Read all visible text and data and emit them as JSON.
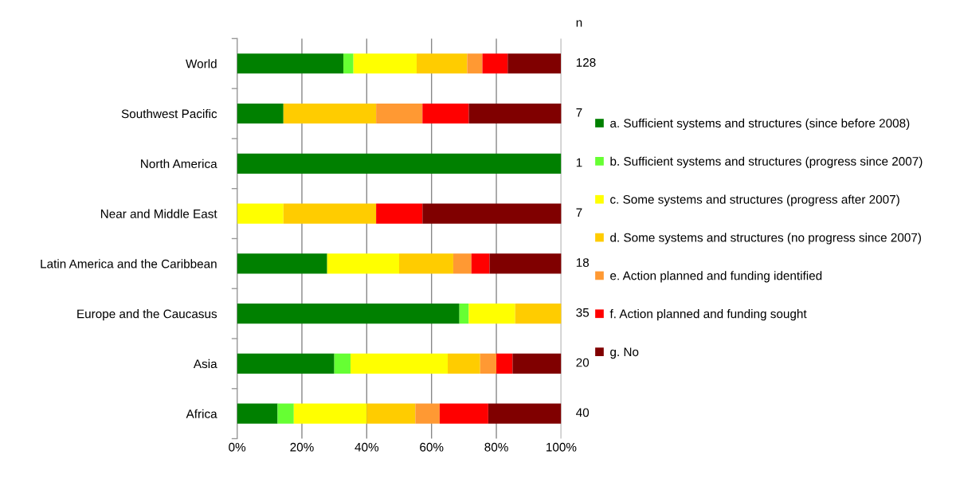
{
  "chart_data": {
    "type": "bar",
    "orientation": "horizontal",
    "stacked": true,
    "categories": [
      "World",
      "Southwest Pacific",
      "North America",
      "Near and Middle East",
      "Latin America and the Caribbean",
      "Europe and the Caucasus",
      "Asia",
      "Africa"
    ],
    "series": [
      {
        "name": "a. Sufficient systems and structures (since before 2008)",
        "color": "#008000",
        "values": [
          32.8,
          14.3,
          100,
          0,
          27.8,
          68.6,
          30,
          12.5
        ]
      },
      {
        "name": "b. Sufficient systems and structures (progress since 2007)",
        "color": "#66ff33",
        "values": [
          3.1,
          0,
          0,
          0,
          0,
          2.9,
          5,
          5
        ]
      },
      {
        "name": "c. Some systems and structures (progress after 2007)",
        "color": "#ffff00",
        "values": [
          19.5,
          0,
          0,
          14.3,
          22.2,
          14.3,
          30,
          22.5
        ]
      },
      {
        "name": "d. Some systems and structures (no progress since 2007)",
        "color": "#ffcc00",
        "values": [
          15.6,
          28.6,
          0,
          28.6,
          16.7,
          14.3,
          10,
          15
        ]
      },
      {
        "name": "e. Action planned and funding identified",
        "color": "#ff9933",
        "values": [
          4.7,
          14.3,
          0,
          0,
          5.6,
          0,
          5,
          7.5
        ]
      },
      {
        "name": "f. Action planned and funding sought",
        "color": "#ff0000",
        "values": [
          7.8,
          14.3,
          0,
          14.3,
          5.6,
          0,
          5,
          15
        ]
      },
      {
        "name": "g. No",
        "color": "#800000",
        "values": [
          16.4,
          28.6,
          0,
          42.9,
          22.2,
          0,
          15,
          22.5
        ]
      }
    ],
    "annotations": [
      "n",
      "128",
      "7",
      "1",
      "7",
      "18",
      "35",
      "20",
      "40"
    ],
    "xlim": [
      0,
      100
    ],
    "xticks": [
      {
        "value": 0,
        "label": "0%"
      },
      {
        "value": 20,
        "label": "20%"
      },
      {
        "value": 40,
        "label": "40%"
      },
      {
        "value": 60,
        "label": "60%"
      },
      {
        "value": 80,
        "label": "80%"
      },
      {
        "value": 100,
        "label": "100%"
      }
    ],
    "grid": "x",
    "legend": "right"
  }
}
